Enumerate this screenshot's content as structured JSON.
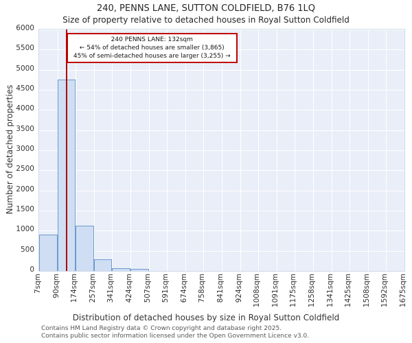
{
  "title": "240, PENNS LANE, SUTTON COLDFIELD, B76 1LQ",
  "subtitle": "Size of property relative to detached houses in Royal Sutton Coldfield",
  "annotation": {
    "line1": "240 PENNS LANE: 132sqm",
    "line2": "← 54% of detached houses are smaller (3,865)",
    "line3": "45% of semi-detached houses are larger (3,255) →"
  },
  "footer": {
    "line1": "Contains HM Land Registry data © Crown copyright and database right 2025.",
    "line2": "Contains public sector information licensed under the Open Government Licence v3.0."
  },
  "chart_data": {
    "type": "bar",
    "title": "240, PENNS LANE, SUTTON COLDFIELD, B76 1LQ",
    "subtitle": "Size of property relative to detached houses in Royal Sutton Coldfield",
    "xlabel": "Distribution of detached houses by size in Royal Sutton Coldfield",
    "ylabel": "Number of detached properties",
    "x_tick_labels": [
      "7sqm",
      "90sqm",
      "174sqm",
      "257sqm",
      "341sqm",
      "424sqm",
      "507sqm",
      "591sqm",
      "674sqm",
      "758sqm",
      "841sqm",
      "924sqm",
      "1008sqm",
      "1091sqm",
      "1175sqm",
      "1258sqm",
      "1341sqm",
      "1425sqm",
      "1508sqm",
      "1592sqm",
      "1675sqm"
    ],
    "x_range_sqm": [
      7,
      1675
    ],
    "values": [
      900,
      4750,
      1120,
      290,
      70,
      45,
      0,
      0,
      0,
      0,
      0,
      0,
      0,
      0,
      0,
      0,
      0,
      0,
      0,
      0
    ],
    "ylim": [
      0,
      6000
    ],
    "y_ticks": [
      0,
      500,
      1000,
      1500,
      2000,
      2500,
      3000,
      3500,
      4000,
      4500,
      5000,
      5500,
      6000
    ],
    "grid": true,
    "legend": "none",
    "marker_value_sqm": 132,
    "marker_color": "#b00000",
    "accent_red": "#c00000",
    "bar_fill": "#cfdef2",
    "bar_edge": "#6e9bd0",
    "plot_bg": "#e9eef8",
    "grid_color": "#ffffff"
  }
}
